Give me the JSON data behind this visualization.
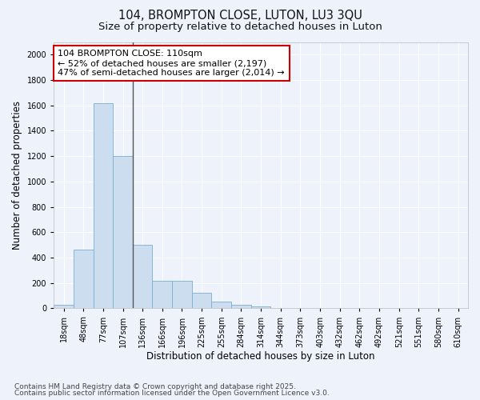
{
  "title_line1": "104, BROMPTON CLOSE, LUTON, LU3 3QU",
  "title_line2": "Size of property relative to detached houses in Luton",
  "xlabel": "Distribution of detached houses by size in Luton",
  "ylabel": "Number of detached properties",
  "categories": [
    "18sqm",
    "48sqm",
    "77sqm",
    "107sqm",
    "136sqm",
    "166sqm",
    "196sqm",
    "225sqm",
    "255sqm",
    "284sqm",
    "314sqm",
    "344sqm",
    "373sqm",
    "403sqm",
    "432sqm",
    "462sqm",
    "492sqm",
    "521sqm",
    "551sqm",
    "580sqm",
    "610sqm"
  ],
  "values": [
    30,
    460,
    1620,
    1200,
    500,
    215,
    215,
    120,
    50,
    25,
    15,
    0,
    0,
    0,
    0,
    0,
    0,
    0,
    0,
    0,
    0
  ],
  "bar_color": "#ccddf0",
  "bar_edge_color": "#7aaed4",
  "vline_x_index": 3.5,
  "vline_color": "#555555",
  "annotation_line1": "104 BROMPTON CLOSE: 110sqm",
  "annotation_line2": "← 52% of detached houses are smaller (2,197)",
  "annotation_line3": "47% of semi-detached houses are larger (2,014) →",
  "annotation_box_color": "#ffffff",
  "annotation_box_edge_color": "#cc0000",
  "ylim": [
    0,
    2100
  ],
  "yticks": [
    0,
    200,
    400,
    600,
    800,
    1000,
    1200,
    1400,
    1600,
    1800,
    2000
  ],
  "background_color": "#eef2fb",
  "grid_color": "#ffffff",
  "footer_line1": "Contains HM Land Registry data © Crown copyright and database right 2025.",
  "footer_line2": "Contains public sector information licensed under the Open Government Licence v3.0.",
  "title_fontsize": 10.5,
  "subtitle_fontsize": 9.5,
  "axis_label_fontsize": 8.5,
  "tick_fontsize": 7,
  "annotation_fontsize": 8,
  "footer_fontsize": 6.5
}
